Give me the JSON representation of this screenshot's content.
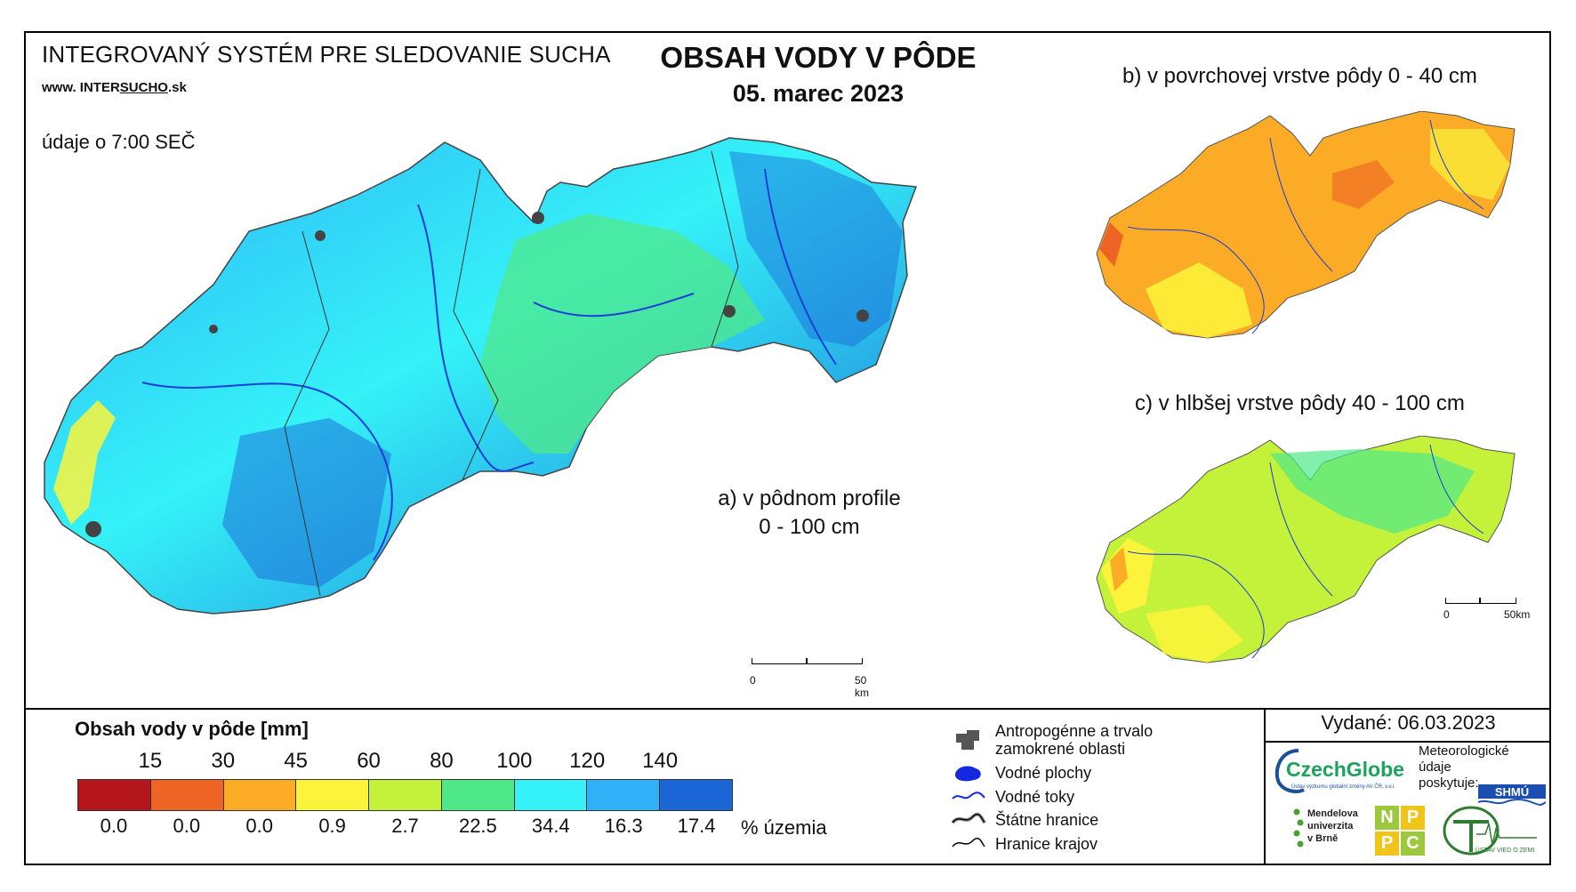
{
  "header": {
    "system_title": "INTEGROVANÝ SYSTÉM PRE SLEDOVANIE SUCHA",
    "site_prefix": "www. INTER",
    "site_underlined": "SUCHO",
    "site_suffix": ".sk",
    "time_note": "údaje o 7:00 SEČ",
    "main_title": "OBSAH VODY V PÔDE",
    "date": "05. marec 2023"
  },
  "maps": {
    "a_label_line1": "a) v pôdnom profile",
    "a_label_line2": "0 - 100 cm",
    "b_label": "b) v povrchovej vrstve pôdy 0 - 40 cm",
    "c_label": "c) v hlbšej vrstve pôdy 40 - 100 cm",
    "scale_main_start": "0",
    "scale_main_end": "50 km",
    "scale_small_start": "0",
    "scale_small_end": "50km"
  },
  "legend": {
    "title": "Obsah vody v pôde  [mm]",
    "thresholds": [
      "15",
      "30",
      "45",
      "60",
      "80",
      "100",
      "120",
      "140"
    ],
    "colors": [
      "#b5161b",
      "#ee6425",
      "#fbab26",
      "#fbf43b",
      "#c4f23a",
      "#4fe889",
      "#34f2f7",
      "#30b1f7",
      "#1b66d6"
    ],
    "percentages": [
      "0.0",
      "0.0",
      "0.0",
      "0.9",
      "2.7",
      "22.5",
      "34.4",
      "16.3",
      "17.4"
    ],
    "percent_unit": "% územia"
  },
  "symbols": [
    {
      "icon": "urban-area-icon",
      "label_line1": "Antropogénne a trvalo",
      "label_line2": "zamokrené oblasti"
    },
    {
      "icon": "water-body-icon",
      "label_line1": "Vodné plochy",
      "label_line2": ""
    },
    {
      "icon": "river-icon",
      "label_line1": "Vodné toky",
      "label_line2": ""
    },
    {
      "icon": "state-border-icon",
      "label_line1": "Štátne hranice",
      "label_line2": ""
    },
    {
      "icon": "region-border-icon",
      "label_line1": "Hranice krajov",
      "label_line2": ""
    }
  ],
  "footer": {
    "issued": "Vydané: 06.03.2023",
    "czechglobe": "CzechGlobe",
    "czechglobe_sub": "Ústav výzkumu globální změny AV ČR, v.v.i.",
    "met_note_1": "Meteorologické",
    "met_note_2": "údaje",
    "met_note_3": "poskytuje:",
    "shmu": "SHMÚ",
    "mendel_1": "Mendelova",
    "mendel_2": "univerzita",
    "mendel_3": "v Brně",
    "nppc": [
      "N",
      "P",
      "P",
      "C"
    ],
    "uvz": "ÚSTAV VIED O ZEMI"
  }
}
